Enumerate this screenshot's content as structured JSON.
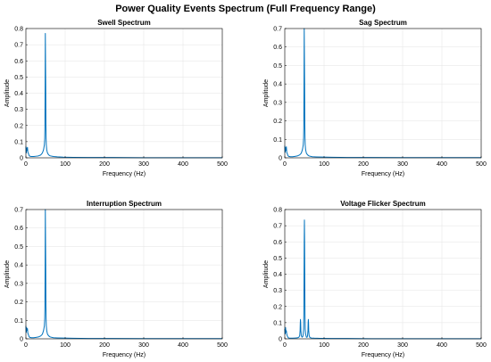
{
  "figure": {
    "title": "Power Quality Events Spectrum (Full Frequency Range)",
    "line_color": "#0072bd",
    "grid": true
  },
  "chart_data": [
    {
      "type": "line",
      "title": "Swell Spectrum",
      "xlabel": "Frequency (Hz)",
      "ylabel": "Amplitude",
      "xlim": [
        0,
        500
      ],
      "ylim": [
        0,
        0.8
      ],
      "xticks": [
        0,
        100,
        200,
        300,
        400,
        500
      ],
      "yticks": [
        0,
        0.1,
        0.2,
        0.3,
        0.4,
        0.5,
        0.6,
        0.7,
        0.8
      ],
      "series": [
        {
          "x": [
            0,
            1,
            2,
            3,
            4,
            5,
            6,
            8,
            10,
            14,
            20,
            26,
            32,
            38,
            42,
            45,
            47,
            48,
            48.5,
            49,
            49.5,
            50,
            50.5,
            51,
            51.5,
            52,
            53,
            55,
            58,
            62,
            70,
            80,
            95,
            120,
            160,
            220,
            300,
            400,
            500
          ],
          "y": [
            0.07,
            0.03,
            0.06,
            0.045,
            0.065,
            0.035,
            0.03,
            0.015,
            0.01,
            0.008,
            0.008,
            0.01,
            0.012,
            0.018,
            0.03,
            0.05,
            0.08,
            0.12,
            0.2,
            0.45,
            0.77,
            0.6,
            0.45,
            0.2,
            0.12,
            0.08,
            0.05,
            0.03,
            0.018,
            0.012,
            0.008,
            0.006,
            0.004,
            0.003,
            0.002,
            0.002,
            0.001,
            0.001,
            0.001
          ]
        }
      ]
    },
    {
      "type": "line",
      "title": "Sag Spectrum",
      "xlabel": "Frequency (Hz)",
      "ylabel": "Amplitude",
      "xlim": [
        0,
        500
      ],
      "ylim": [
        0,
        0.7
      ],
      "xticks": [
        0,
        100,
        200,
        300,
        400,
        500
      ],
      "yticks": [
        0,
        0.1,
        0.2,
        0.3,
        0.4,
        0.5,
        0.6,
        0.7
      ],
      "series": [
        {
          "x": [
            0,
            1,
            2,
            3,
            4,
            5,
            6,
            8,
            10,
            14,
            20,
            26,
            32,
            38,
            42,
            45,
            47,
            48,
            48.5,
            49,
            49.5,
            50,
            50.5,
            51,
            51.5,
            52,
            53,
            55,
            58,
            62,
            70,
            80,
            95,
            120,
            160,
            220,
            300,
            400,
            500
          ],
          "y": [
            0.065,
            0.03,
            0.055,
            0.04,
            0.06,
            0.03,
            0.025,
            0.012,
            0.008,
            0.006,
            0.006,
            0.008,
            0.01,
            0.016,
            0.025,
            0.045,
            0.07,
            0.11,
            0.18,
            0.4,
            0.7,
            0.55,
            0.4,
            0.18,
            0.11,
            0.07,
            0.045,
            0.025,
            0.016,
            0.01,
            0.006,
            0.005,
            0.004,
            0.003,
            0.002,
            0.002,
            0.001,
            0.001,
            0.001
          ]
        }
      ]
    },
    {
      "type": "line",
      "title": "Interruption Spectrum",
      "xlabel": "Frequency (Hz)",
      "ylabel": "Amplitude",
      "xlim": [
        0,
        500
      ],
      "ylim": [
        0,
        0.7
      ],
      "xticks": [
        0,
        100,
        200,
        300,
        400,
        500
      ],
      "yticks": [
        0,
        0.1,
        0.2,
        0.3,
        0.4,
        0.5,
        0.6,
        0.7
      ],
      "series": [
        {
          "x": [
            0,
            1,
            2,
            3,
            4,
            5,
            6,
            8,
            10,
            14,
            20,
            26,
            32,
            38,
            42,
            45,
            47,
            48,
            48.5,
            49,
            49.5,
            50,
            50.5,
            51,
            51.5,
            52,
            53,
            55,
            58,
            62,
            70,
            80,
            95,
            120,
            160,
            220,
            300,
            400,
            500
          ],
          "y": [
            0.07,
            0.035,
            0.06,
            0.045,
            0.055,
            0.03,
            0.025,
            0.012,
            0.008,
            0.006,
            0.006,
            0.008,
            0.01,
            0.016,
            0.025,
            0.045,
            0.07,
            0.11,
            0.18,
            0.4,
            0.7,
            0.55,
            0.4,
            0.18,
            0.11,
            0.07,
            0.045,
            0.025,
            0.016,
            0.01,
            0.006,
            0.005,
            0.004,
            0.003,
            0.002,
            0.002,
            0.001,
            0.001,
            0.001
          ]
        }
      ]
    },
    {
      "type": "line",
      "title": "Voltage Flicker Spectrum",
      "xlabel": "Frequency (Hz)",
      "ylabel": "Amplitude",
      "xlim": [
        0,
        500
      ],
      "ylim": [
        0,
        0.8
      ],
      "xticks": [
        0,
        100,
        200,
        300,
        400,
        500
      ],
      "yticks": [
        0,
        0.1,
        0.2,
        0.3,
        0.4,
        0.5,
        0.6,
        0.7,
        0.8
      ],
      "series": [
        {
          "x": [
            0,
            1,
            2,
            3,
            4,
            5,
            6,
            8,
            10,
            14,
            20,
            26,
            32,
            36,
            38,
            39,
            39.5,
            40,
            40.5,
            41,
            42,
            44,
            46,
            47,
            48,
            48.5,
            49,
            49.5,
            50,
            50.5,
            51,
            51.5,
            52,
            53,
            55,
            57,
            58,
            59,
            59.5,
            60,
            60.5,
            61,
            62,
            64,
            68,
            75,
            90,
            120,
            160,
            220,
            300,
            400,
            500
          ],
          "y": [
            0.06,
            0.03,
            0.07,
            0.04,
            0.05,
            0.03,
            0.02,
            0.01,
            0.005,
            0.004,
            0.004,
            0.005,
            0.006,
            0.01,
            0.02,
            0.05,
            0.1,
            0.12,
            0.1,
            0.05,
            0.02,
            0.01,
            0.015,
            0.03,
            0.06,
            0.15,
            0.35,
            0.6,
            0.735,
            0.6,
            0.35,
            0.15,
            0.06,
            0.03,
            0.01,
            0.01,
            0.02,
            0.05,
            0.1,
            0.12,
            0.1,
            0.05,
            0.02,
            0.008,
            0.005,
            0.004,
            0.003,
            0.002,
            0.002,
            0.001,
            0.001,
            0.001,
            0.001
          ]
        }
      ]
    }
  ]
}
